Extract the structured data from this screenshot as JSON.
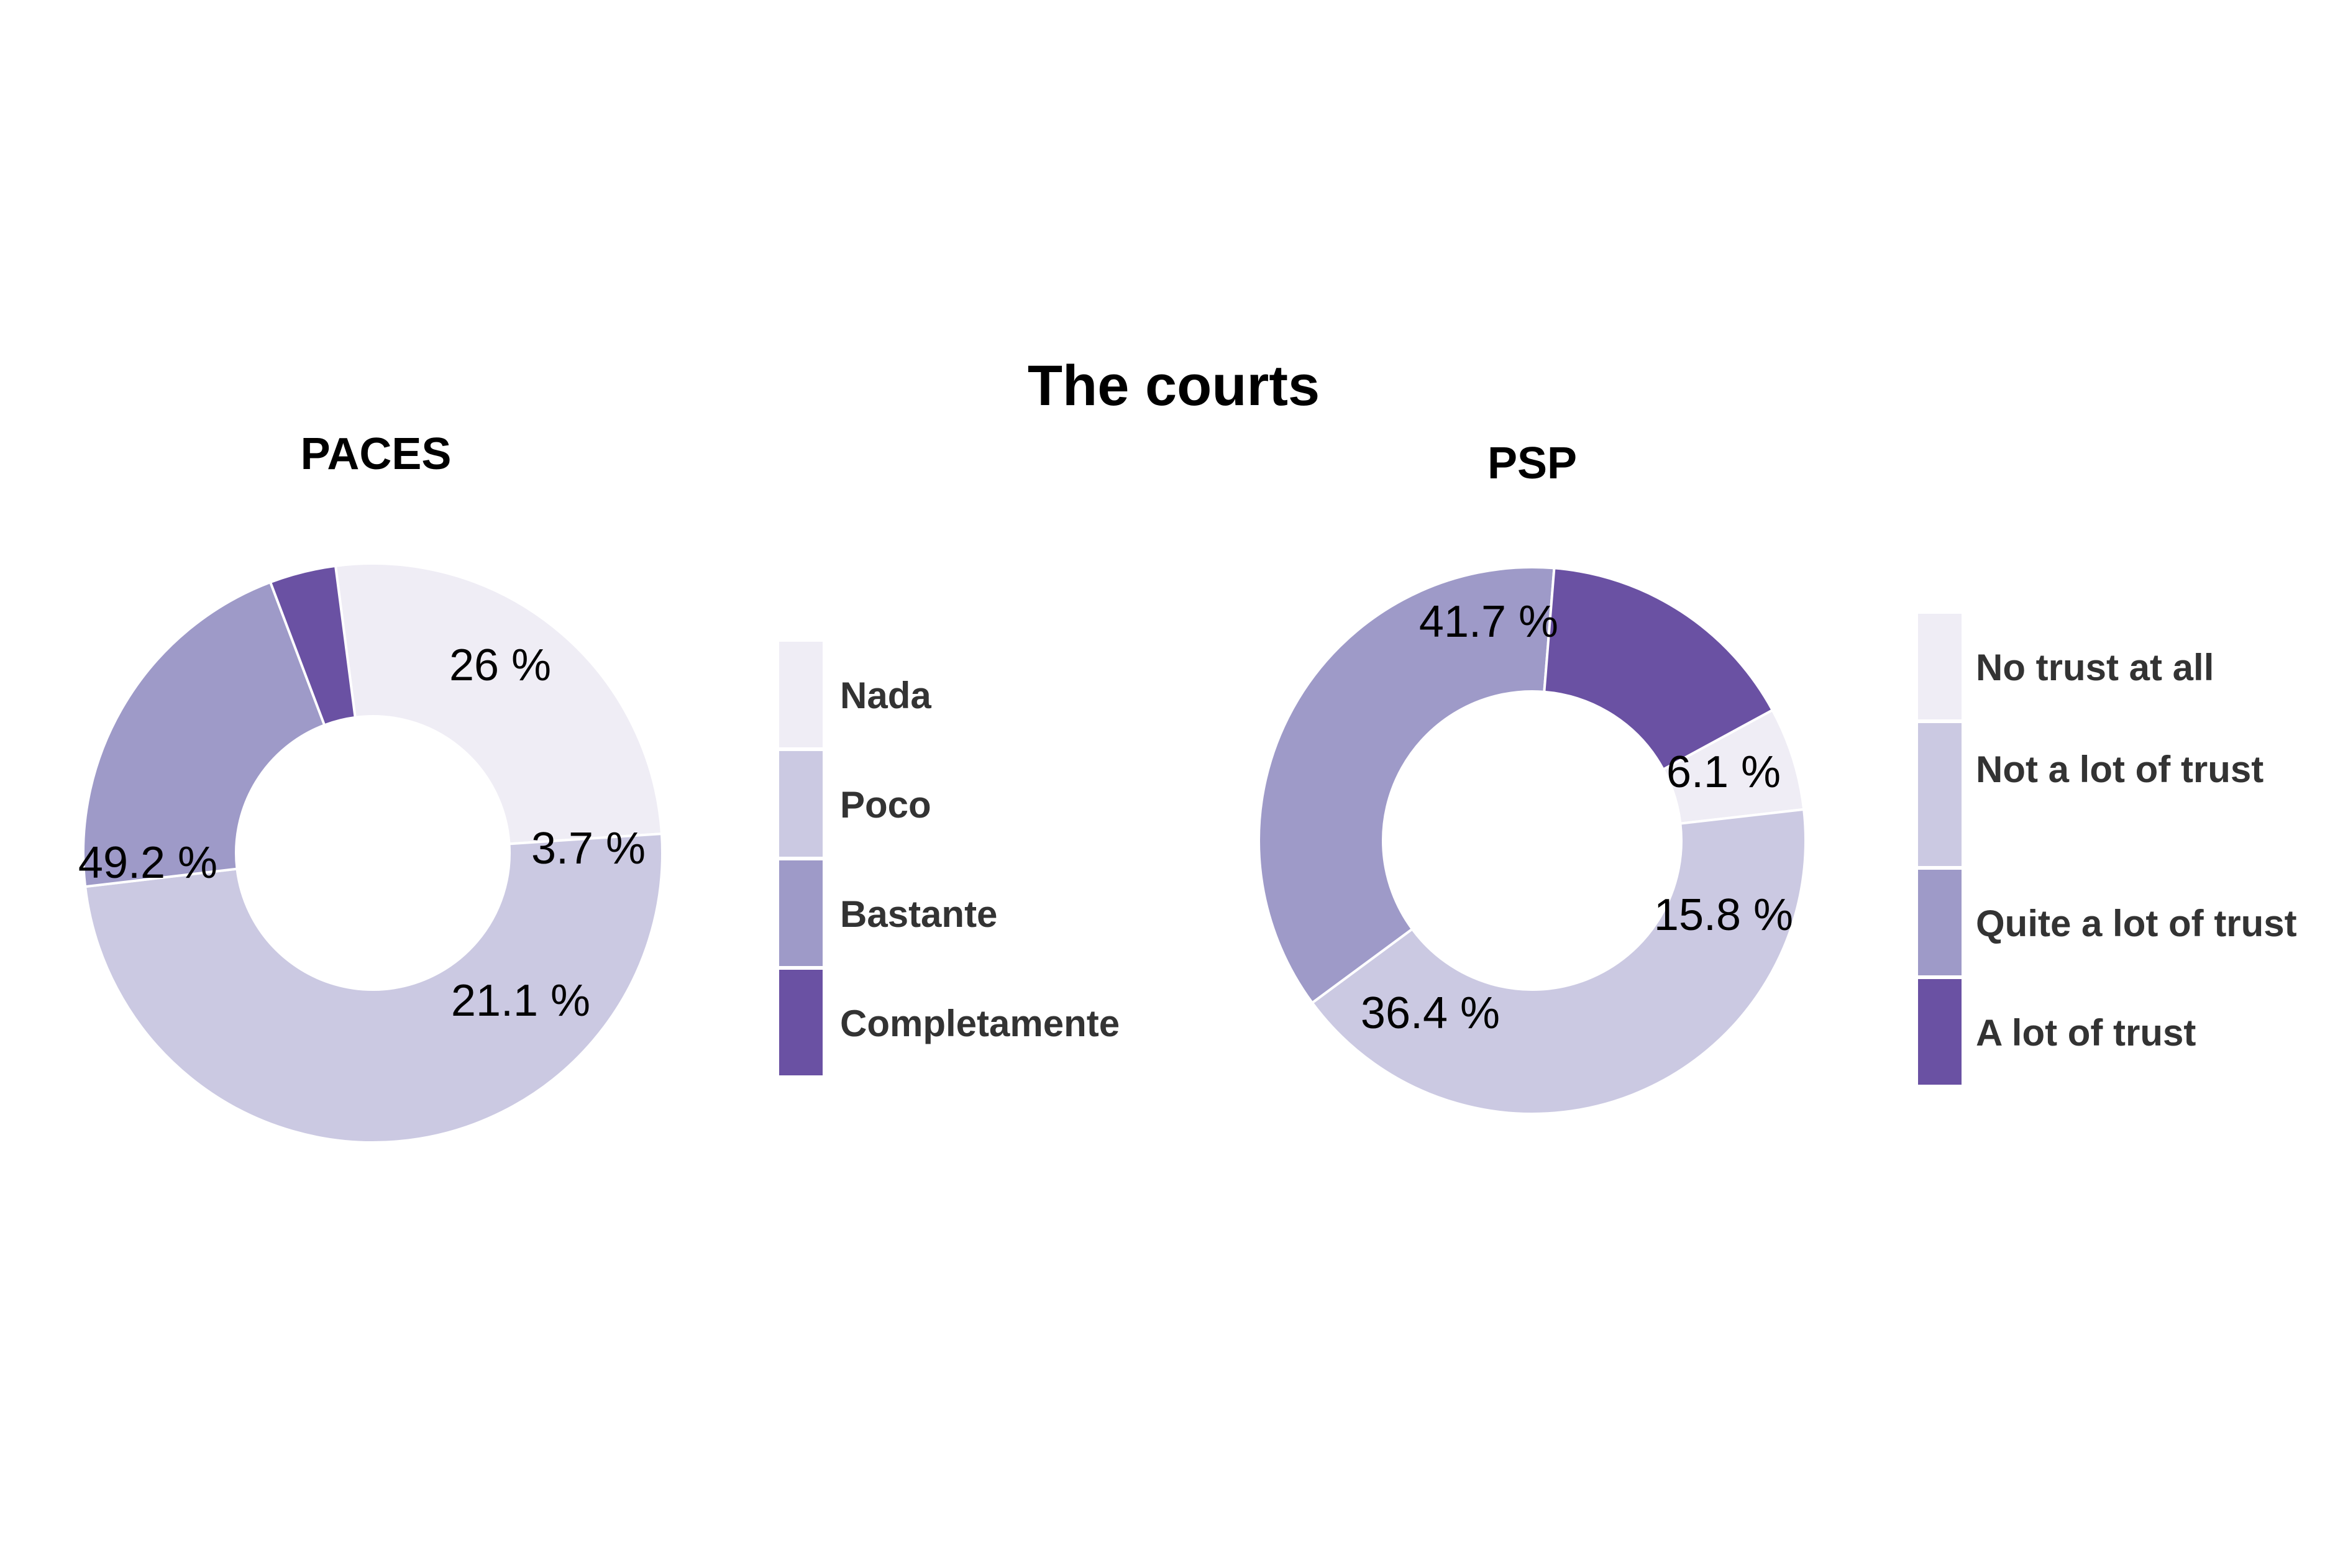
{
  "title": "The courts",
  "chart_data": [
    {
      "type": "pie",
      "donut": true,
      "title": "PACES",
      "unit": "%",
      "series": [
        {
          "label": "Nada",
          "value": 26,
          "display": "26 %",
          "color": "#efedf5"
        },
        {
          "label": "Poco",
          "value": 49.2,
          "display": "49.2 %",
          "color": "#cbc9e2"
        },
        {
          "label": "Bastante",
          "value": 21.1,
          "display": "21.1 %",
          "color": "#9e9ac8"
        },
        {
          "label": "Completamente",
          "value": 3.7,
          "display": "3.7 %",
          "color": "#6a51a3"
        }
      ],
      "legend": {
        "position": "right",
        "entries": [
          "Nada",
          "Poco",
          "Bastante",
          "Completamente"
        ]
      }
    },
    {
      "type": "pie",
      "donut": true,
      "title": "PSP",
      "unit": "%",
      "series": [
        {
          "label": "No trust at all",
          "value": 6.1,
          "display": "6.1 %",
          "color": "#efedf5"
        },
        {
          "label": "Not a lot of trust",
          "value": 41.7,
          "display": "41.7 %",
          "color": "#cbc9e2"
        },
        {
          "label": "Quite a lot of trust",
          "value": 36.4,
          "display": "36.4 %",
          "color": "#9e9ac8"
        },
        {
          "label": "A lot of trust",
          "value": 15.8,
          "display": "15.8 %",
          "color": "#6a51a3"
        }
      ],
      "legend": {
        "position": "right",
        "entries": [
          "No trust at all",
          "Not a lot of trust",
          "Quite a lot of trust",
          "A lot of trust"
        ]
      }
    }
  ]
}
